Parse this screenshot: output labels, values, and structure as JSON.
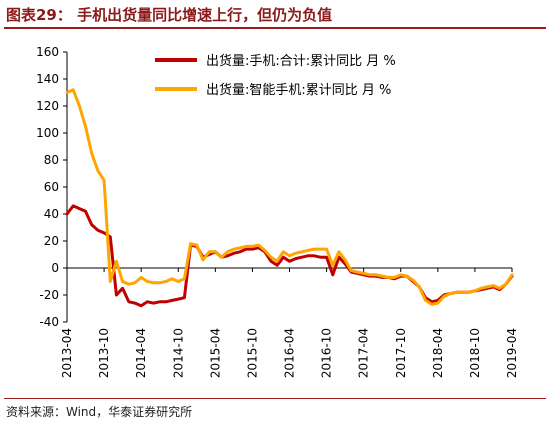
{
  "header": {
    "title": "图表29：  手机出货量同比增速上行，但仍为负值"
  },
  "footer": {
    "source": "资料来源：Wind，华泰证券研究所"
  },
  "colors": {
    "series_total": "#c00000",
    "series_smart": "#ffa500",
    "title": "#8b1a1a",
    "rule": "#9b1b1b"
  },
  "chart_data": {
    "type": "line",
    "title": "",
    "xlabel": "",
    "ylabel": "",
    "ylim": [
      -40,
      160
    ],
    "yticks": [
      -40,
      -20,
      0,
      20,
      40,
      60,
      80,
      100,
      120,
      140,
      160
    ],
    "xlim": [
      "2013-04",
      "2019-04"
    ],
    "xticks": [
      "2013-04",
      "2013-10",
      "2014-04",
      "2014-10",
      "2015-04",
      "2015-10",
      "2016-04",
      "2016-10",
      "2017-04",
      "2017-10",
      "2018-04",
      "2018-10",
      "2019-04"
    ],
    "legend_position": "top",
    "grid": false,
    "series": [
      {
        "name": "出货量:手机:合计:累计同比 月 %",
        "color": "#c00000",
        "x": [
          "2013-04",
          "2013-05",
          "2013-06",
          "2013-07",
          "2013-08",
          "2013-09",
          "2013-10",
          "2013-11",
          "2013-12",
          "2014-01",
          "2014-02",
          "2014-03",
          "2014-04",
          "2014-05",
          "2014-06",
          "2014-07",
          "2014-08",
          "2014-09",
          "2014-10",
          "2014-11",
          "2014-12",
          "2015-01",
          "2015-02",
          "2015-03",
          "2015-04",
          "2015-05",
          "2015-06",
          "2015-07",
          "2015-08",
          "2015-09",
          "2015-10",
          "2015-11",
          "2015-12",
          "2016-01",
          "2016-02",
          "2016-03",
          "2016-04",
          "2016-05",
          "2016-06",
          "2016-07",
          "2016-08",
          "2016-09",
          "2016-10",
          "2016-11",
          "2016-12",
          "2017-01",
          "2017-02",
          "2017-03",
          "2017-04",
          "2017-05",
          "2017-06",
          "2017-07",
          "2017-08",
          "2017-09",
          "2017-10",
          "2017-11",
          "2017-12",
          "2018-01",
          "2018-02",
          "2018-03",
          "2018-04",
          "2018-05",
          "2018-06",
          "2018-07",
          "2018-08",
          "2018-09",
          "2018-10",
          "2018-11",
          "2018-12",
          "2019-01",
          "2019-02",
          "2019-03",
          "2019-04"
        ],
        "y": [
          40,
          46,
          44,
          42,
          32,
          28,
          26,
          23,
          -20,
          -15,
          -25,
          -26,
          -28,
          -25,
          -26,
          -25,
          -25,
          -24,
          -23,
          -22,
          17,
          16,
          8,
          10,
          12,
          8,
          9,
          11,
          12,
          14,
          14,
          15,
          12,
          5,
          2,
          8,
          5,
          7,
          8,
          9,
          9,
          8,
          8,
          -5,
          8,
          3,
          -3,
          -4,
          -5,
          -6,
          -6,
          -7,
          -7,
          -8,
          -6,
          -6,
          -10,
          -14,
          -22,
          -25,
          -24,
          -20,
          -19,
          -18,
          -18,
          -18,
          -17,
          -16,
          -15,
          -14,
          -16,
          -12,
          -6
        ]
      },
      {
        "name": "出货量:智能手机:累计同比 月 %",
        "color": "#ffa500",
        "x": [
          "2013-04",
          "2013-05",
          "2013-06",
          "2013-07",
          "2013-08",
          "2013-09",
          "2013-10",
          "2013-11",
          "2013-12",
          "2014-01",
          "2014-02",
          "2014-03",
          "2014-04",
          "2014-05",
          "2014-06",
          "2014-07",
          "2014-08",
          "2014-09",
          "2014-10",
          "2014-11",
          "2014-12",
          "2015-01",
          "2015-02",
          "2015-03",
          "2015-04",
          "2015-05",
          "2015-06",
          "2015-07",
          "2015-08",
          "2015-09",
          "2015-10",
          "2015-11",
          "2015-12",
          "2016-01",
          "2016-02",
          "2016-03",
          "2016-04",
          "2016-05",
          "2016-06",
          "2016-07",
          "2016-08",
          "2016-09",
          "2016-10",
          "2016-11",
          "2016-12",
          "2017-01",
          "2017-02",
          "2017-03",
          "2017-04",
          "2017-05",
          "2017-06",
          "2017-07",
          "2017-08",
          "2017-09",
          "2017-10",
          "2017-11",
          "2017-12",
          "2018-01",
          "2018-02",
          "2018-03",
          "2018-04",
          "2018-05",
          "2018-06",
          "2018-07",
          "2018-08",
          "2018-09",
          "2018-10",
          "2018-11",
          "2018-12",
          "2019-01",
          "2019-02",
          "2019-03",
          "2019-04"
        ],
        "y": [
          130,
          132,
          120,
          105,
          85,
          72,
          65,
          -10,
          5,
          -10,
          -12,
          -11,
          -7,
          -10,
          -11,
          -11,
          -10,
          -8,
          -10,
          -8,
          18,
          17,
          6,
          12,
          12,
          8,
          12,
          14,
          15,
          16,
          16,
          17,
          13,
          8,
          5,
          12,
          9,
          11,
          12,
          13,
          14,
          14,
          14,
          2,
          12,
          6,
          -2,
          -3,
          -4,
          -5,
          -5,
          -6,
          -7,
          -7,
          -5,
          -6,
          -9,
          -14,
          -24,
          -27,
          -26,
          -21,
          -19,
          -18,
          -18,
          -18,
          -17,
          -15,
          -14,
          -13,
          -15,
          -12,
          -5
        ]
      }
    ]
  }
}
